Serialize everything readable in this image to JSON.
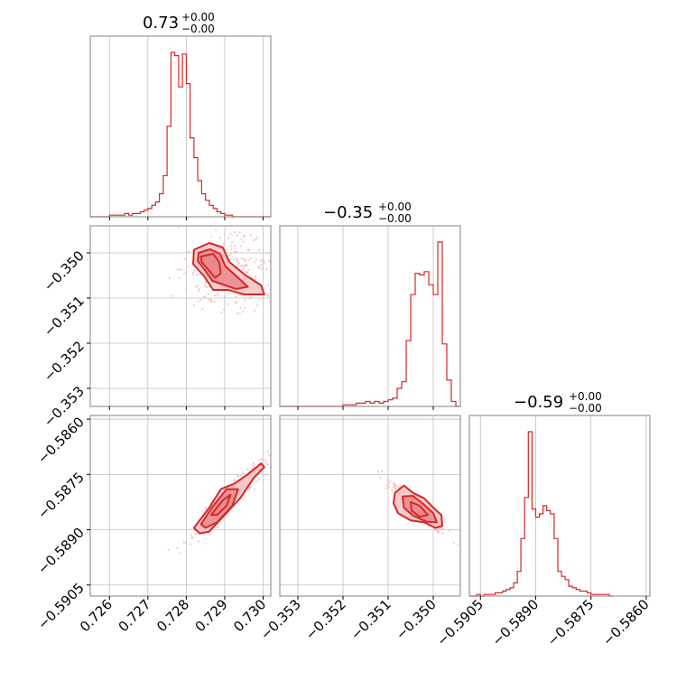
{
  "colors": {
    "series": "#d62728",
    "fill_light": "#f4c3c4",
    "fill_mid": "#e98a8c",
    "grid": "#bfbfbf",
    "frame": "#808080",
    "scatter": "#f2b8b9"
  },
  "titles": {
    "p0": {
      "base": "0.73",
      "sup": "+0.00",
      "sub": "−0.00"
    },
    "p1": {
      "base": "−0.35",
      "sup": "+0.00",
      "sub": "−0.00"
    },
    "p2": {
      "base": "−0.59",
      "sup": "+0.00",
      "sub": "−0.00"
    }
  },
  "chart_data": {
    "type": "corner",
    "params": [
      {
        "range": [
          0.7255,
          0.7302
        ],
        "ticks": [
          0.726,
          0.727,
          0.728,
          0.729,
          0.73
        ],
        "tick_labels": [
          "0.726",
          "0.727",
          "0.728",
          "0.729",
          "0.730"
        ]
      },
      {
        "range": [
          -0.3534,
          -0.3494
        ],
        "ticks": [
          -0.353,
          -0.352,
          -0.351,
          -0.35
        ],
        "tick_labels": [
          "−0.353",
          "−0.352",
          "−0.351",
          "−0.350"
        ]
      },
      {
        "range": [
          -0.5908,
          -0.5859
        ],
        "ticks": [
          -0.5905,
          -0.589,
          -0.5875,
          -0.586
        ],
        "tick_labels": [
          "−0.5905",
          "−0.5890",
          "−0.5875",
          "−0.5860"
        ]
      }
    ],
    "histograms": [
      {
        "param": 0,
        "bin_start": 0.7255,
        "bin_width": 0.0001,
        "counts": [
          0,
          0,
          0,
          0,
          0,
          1,
          1,
          1,
          1,
          2,
          1,
          2,
          2,
          3,
          4,
          5,
          7,
          9,
          14,
          25,
          55,
          100,
          98,
          79,
          99,
          81,
          48,
          36,
          22,
          14,
          10,
          7,
          5,
          3,
          2,
          1,
          1,
          0,
          0,
          0,
          0,
          0,
          0,
          0,
          0,
          0,
          0
        ]
      },
      {
        "param": 1,
        "bin_start": -0.3534,
        "bin_width": 0.0001,
        "counts": [
          0,
          0,
          0,
          0,
          0,
          0,
          0,
          0,
          0,
          0,
          0,
          0,
          0,
          0,
          1,
          1,
          1,
          2,
          2,
          3,
          2,
          3,
          2,
          3,
          4,
          5,
          11,
          15,
          40,
          68,
          81,
          80,
          82,
          74,
          68,
          100,
          38,
          16,
          3,
          0
        ]
      },
      {
        "param": 2,
        "bin_start": -0.5908,
        "bin_width": 0.0001,
        "counts": [
          0,
          0,
          1,
          0,
          1,
          1,
          1,
          2,
          2,
          3,
          4,
          5,
          8,
          15,
          35,
          60,
          100,
          53,
          48,
          50,
          55,
          52,
          50,
          35,
          15,
          12,
          10,
          6,
          5,
          4,
          3,
          3,
          2,
          1,
          1,
          1,
          1,
          1,
          0
        ]
      }
    ],
    "contours_2d": [
      {
        "x_param": 0,
        "y_param": 1,
        "levels": [
          [
            [
              0.7282,
              -0.34993
            ],
            [
              0.7286,
              -0.34978
            ],
            [
              0.72895,
              -0.34988
            ],
            [
              0.72912,
              -0.3502
            ],
            [
              0.72955,
              -0.3505
            ],
            [
              0.72995,
              -0.35072
            ],
            [
              0.73003,
              -0.35092
            ],
            [
              0.7295,
              -0.35092
            ],
            [
              0.7291,
              -0.35082
            ],
            [
              0.7287,
              -0.35082
            ],
            [
              0.72845,
              -0.3505
            ],
            [
              0.72818,
              -0.35025
            ]
          ],
          [
            [
              0.72832,
              -0.35
            ],
            [
              0.72862,
              -0.34992
            ],
            [
              0.72888,
              -0.35002
            ],
            [
              0.72902,
              -0.3503
            ],
            [
              0.72935,
              -0.35055
            ],
            [
              0.7296,
              -0.35075
            ],
            [
              0.7293,
              -0.3508
            ],
            [
              0.72895,
              -0.3507
            ],
            [
              0.72868,
              -0.35062
            ],
            [
              0.72848,
              -0.35038
            ],
            [
              0.7283,
              -0.35018
            ]
          ],
          [
            [
              0.72838,
              -0.35008
            ],
            [
              0.7287,
              -0.35002
            ],
            [
              0.72885,
              -0.3502
            ],
            [
              0.7289,
              -0.35045
            ],
            [
              0.72875,
              -0.35055
            ],
            [
              0.72855,
              -0.35035
            ],
            [
              0.7284,
              -0.3502
            ]
          ]
        ]
      },
      {
        "x_param": 0,
        "y_param": 2,
        "levels": [
          [
            [
              0.7282,
              -0.58895
            ],
            [
              0.7286,
              -0.5884
            ],
            [
              0.7289,
              -0.5879
            ],
            [
              0.72925,
              -0.58775
            ],
            [
              0.7296,
              -0.5875
            ],
            [
              0.72995,
              -0.5872
            ],
            [
              0.73003,
              -0.5873
            ],
            [
              0.72975,
              -0.5876
            ],
            [
              0.7294,
              -0.58815
            ],
            [
              0.729,
              -0.5886
            ],
            [
              0.7286,
              -0.58905
            ],
            [
              0.72835,
              -0.5891
            ]
          ],
          [
            [
              0.72838,
              -0.58885
            ],
            [
              0.7287,
              -0.58835
            ],
            [
              0.72905,
              -0.5879
            ],
            [
              0.72935,
              -0.5879
            ],
            [
              0.7292,
              -0.58835
            ],
            [
              0.7288,
              -0.5888
            ],
            [
              0.7285,
              -0.58895
            ]
          ],
          [
            [
              0.72865,
              -0.5886
            ],
            [
              0.72895,
              -0.5882
            ],
            [
              0.72915,
              -0.58805
            ],
            [
              0.72905,
              -0.58835
            ],
            [
              0.7288,
              -0.5886
            ]
          ]
        ]
      },
      {
        "x_param": 1,
        "y_param": 2,
        "levels": [
          [
            [
              -0.35085,
              -0.588
            ],
            [
              -0.35065,
              -0.5878
            ],
            [
              -0.35045,
              -0.588
            ],
            [
              -0.3502,
              -0.58815
            ],
            [
              -0.35,
              -0.5884
            ],
            [
              -0.34982,
              -0.5886
            ],
            [
              -0.3498,
              -0.5889
            ],
            [
              -0.34995,
              -0.58895
            ],
            [
              -0.3502,
              -0.5888
            ],
            [
              -0.3505,
              -0.58875
            ],
            [
              -0.35078,
              -0.58855
            ],
            [
              -0.35088,
              -0.58828
            ]
          ],
          [
            [
              -0.35068,
              -0.5881
            ],
            [
              -0.35045,
              -0.58808
            ],
            [
              -0.35022,
              -0.5883
            ],
            [
              -0.35,
              -0.58855
            ],
            [
              -0.34992,
              -0.5888
            ],
            [
              -0.35015,
              -0.58878
            ],
            [
              -0.35045,
              -0.58862
            ],
            [
              -0.35065,
              -0.5884
            ]
          ],
          [
            [
              -0.3505,
              -0.58825
            ],
            [
              -0.3503,
              -0.58835
            ],
            [
              -0.35012,
              -0.5886
            ],
            [
              -0.3503,
              -0.58865
            ],
            [
              -0.35048,
              -0.58848
            ]
          ]
        ]
      }
    ]
  }
}
